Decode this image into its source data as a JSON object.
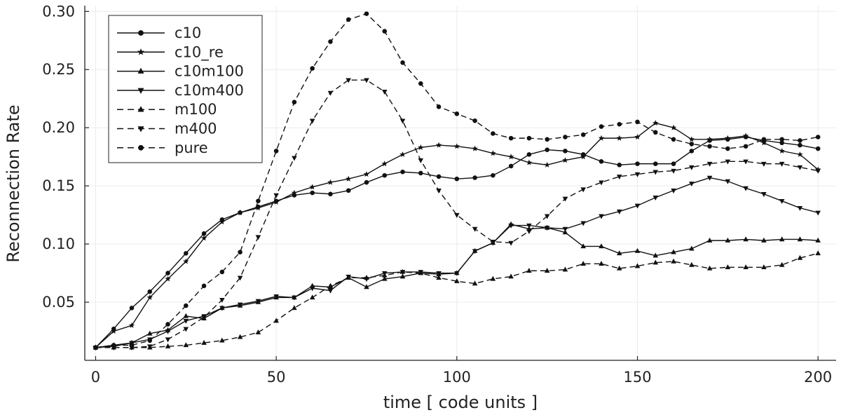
{
  "chart_data": {
    "type": "line",
    "title": "",
    "xlabel": "time [ code units ]",
    "ylabel": "Reconnection Rate",
    "xlim": [
      -3,
      205
    ],
    "ylim": [
      0.0,
      0.305
    ],
    "xticks": [
      0,
      50,
      100,
      150,
      200
    ],
    "xtick_labels": [
      "0",
      "50",
      "100",
      "150",
      "200"
    ],
    "yticks": [
      0.05,
      0.1,
      0.15,
      0.2,
      0.25,
      0.3
    ],
    "ytick_labels": [
      "0.05",
      "0.10",
      "0.15",
      "0.20",
      "0.25",
      "0.30"
    ],
    "grid": true,
    "legend_position": "top-left",
    "x": [
      0,
      5,
      10,
      15,
      20,
      25,
      30,
      35,
      40,
      45,
      50,
      55,
      60,
      65,
      70,
      75,
      80,
      85,
      90,
      95,
      100,
      105,
      110,
      115,
      120,
      125,
      130,
      135,
      140,
      145,
      150,
      155,
      160,
      165,
      170,
      175,
      180,
      185,
      190,
      195,
      200
    ],
    "series": [
      {
        "name": "c10",
        "marker": "circle",
        "dash": "solid",
        "values": [
          0.011,
          0.027,
          0.045,
          0.059,
          0.075,
          0.092,
          0.109,
          0.121,
          0.127,
          0.132,
          0.137,
          0.142,
          0.144,
          0.143,
          0.146,
          0.153,
          0.159,
          0.162,
          0.161,
          0.158,
          0.156,
          0.157,
          0.159,
          0.167,
          0.177,
          0.181,
          0.18,
          0.177,
          0.171,
          0.168,
          0.169,
          0.169,
          0.169,
          0.18,
          0.189,
          0.19,
          0.192,
          0.189,
          0.187,
          0.185,
          0.182
        ]
      },
      {
        "name": "c10_re",
        "marker": "star",
        "dash": "solid",
        "values": [
          0.011,
          0.025,
          0.03,
          0.054,
          0.07,
          0.085,
          0.105,
          0.119,
          0.127,
          0.131,
          0.136,
          0.144,
          0.149,
          0.153,
          0.156,
          0.16,
          0.169,
          0.177,
          0.183,
          0.185,
          0.184,
          0.182,
          0.178,
          0.175,
          0.17,
          0.168,
          0.172,
          0.175,
          0.191,
          0.191,
          0.192,
          0.204,
          0.2,
          0.19,
          0.19,
          0.191,
          0.193,
          0.187,
          0.18,
          0.177,
          0.164
        ]
      },
      {
        "name": "c10m100",
        "marker": "triangle-up",
        "dash": "solid",
        "values": [
          0.011,
          0.013,
          0.015,
          0.023,
          0.026,
          0.038,
          0.036,
          0.045,
          0.047,
          0.05,
          0.054,
          0.054,
          0.064,
          0.063,
          0.071,
          0.063,
          0.07,
          0.072,
          0.075,
          0.074,
          0.075,
          0.094,
          0.101,
          0.117,
          0.113,
          0.114,
          0.11,
          0.098,
          0.098,
          0.092,
          0.094,
          0.09,
          0.093,
          0.096,
          0.103,
          0.103,
          0.104,
          0.103,
          0.104,
          0.104,
          0.103
        ]
      },
      {
        "name": "c10m400",
        "marker": "triangle-down",
        "dash": "solid",
        "values": [
          0.011,
          0.012,
          0.015,
          0.018,
          0.025,
          0.034,
          0.038,
          0.045,
          0.048,
          0.051,
          0.055,
          0.054,
          0.062,
          0.06,
          0.072,
          0.07,
          0.075,
          0.076,
          0.076,
          0.075,
          0.075,
          0.094,
          0.101,
          0.116,
          0.116,
          0.114,
          0.113,
          0.118,
          0.124,
          0.128,
          0.133,
          0.14,
          0.146,
          0.152,
          0.157,
          0.154,
          0.148,
          0.143,
          0.137,
          0.131,
          0.127
        ]
      },
      {
        "name": "m100",
        "marker": "triangle-up",
        "dash": "dashed",
        "values": [
          0.011,
          0.011,
          0.011,
          0.011,
          0.012,
          0.013,
          0.015,
          0.017,
          0.02,
          0.024,
          0.034,
          0.045,
          0.054,
          0.064,
          0.071,
          0.071,
          0.073,
          0.076,
          0.075,
          0.071,
          0.068,
          0.066,
          0.07,
          0.072,
          0.077,
          0.077,
          0.078,
          0.083,
          0.083,
          0.079,
          0.081,
          0.084,
          0.085,
          0.082,
          0.079,
          0.08,
          0.08,
          0.08,
          0.082,
          0.088,
          0.092
        ]
      },
      {
        "name": "m400",
        "marker": "triangle-down",
        "dash": "dashed",
        "values": [
          0.011,
          0.011,
          0.011,
          0.012,
          0.018,
          0.027,
          0.037,
          0.052,
          0.071,
          0.106,
          0.142,
          0.174,
          0.206,
          0.23,
          0.241,
          0.241,
          0.231,
          0.206,
          0.172,
          0.146,
          0.125,
          0.113,
          0.102,
          0.101,
          0.111,
          0.124,
          0.139,
          0.147,
          0.153,
          0.158,
          0.16,
          0.162,
          0.163,
          0.166,
          0.169,
          0.171,
          0.171,
          0.169,
          0.169,
          0.166,
          0.163
        ]
      },
      {
        "name": "pure",
        "marker": "circle",
        "dash": "dashed",
        "values": [
          0.011,
          0.013,
          0.013,
          0.017,
          0.031,
          0.047,
          0.064,
          0.076,
          0.093,
          0.137,
          0.18,
          0.222,
          0.251,
          0.274,
          0.293,
          0.298,
          0.283,
          0.256,
          0.238,
          0.218,
          0.212,
          0.206,
          0.195,
          0.191,
          0.191,
          0.19,
          0.192,
          0.194,
          0.201,
          0.203,
          0.205,
          0.196,
          0.19,
          0.186,
          0.184,
          0.182,
          0.184,
          0.19,
          0.19,
          0.189,
          0.192
        ]
      }
    ]
  }
}
